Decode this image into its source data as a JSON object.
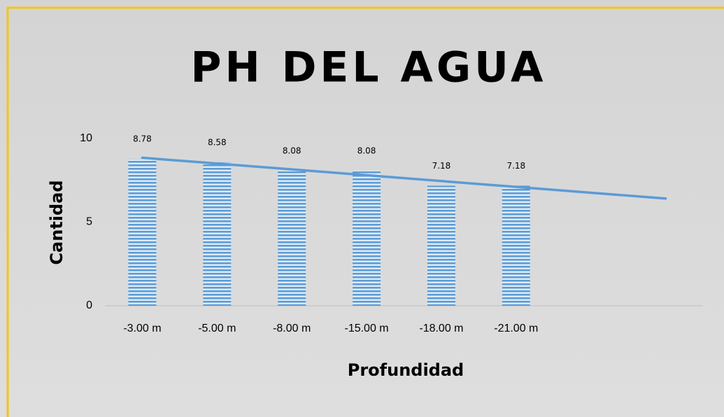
{
  "chart_data": {
    "type": "bar",
    "title": "PH DEL AGUA",
    "x_label": "Profundidad",
    "y_label": "Cantidad",
    "categories": [
      "-3.00 m",
      "-5.00 m",
      "-8.00 m",
      "-15.00 m",
      "-18.00 m",
      "-21.00 m",
      null,
      null
    ],
    "values": [
      8.78,
      8.58,
      8.08,
      8.08,
      7.18,
      7.18,
      null,
      null
    ],
    "color": "#5b9bd5",
    "ylim": [
      0,
      10
    ],
    "yticks": [
      0,
      5,
      10
    ],
    "grid": false,
    "trendline": {
      "type": "linear",
      "color": "#5b9bd5"
    }
  }
}
